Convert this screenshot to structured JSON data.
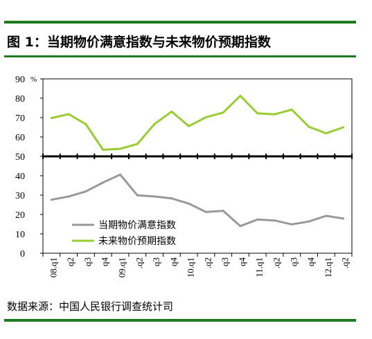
{
  "title": "图 1：当期物价满意指数与未来物价预期指数",
  "source": "数据来源：中国人民银行调查统计司",
  "colors": {
    "rule": "#1f7a1f",
    "current": "#999999",
    "future": "#99cc33",
    "axis": "#000000"
  },
  "chart_data": {
    "type": "line",
    "unit_label": "%",
    "ylim": [
      0,
      90
    ],
    "yticks": [
      0,
      10,
      20,
      30,
      40,
      50,
      60,
      70,
      80,
      90
    ],
    "reference_line": 50,
    "x": [
      "08.q1",
      "q2",
      "q3",
      "q4",
      "09.q1",
      ".q2",
      "q3",
      "q4",
      "10.q1",
      ".q2",
      "q3",
      "q4",
      "11.q1",
      ".q2",
      "q3",
      "q4",
      "12.q1",
      ".q2"
    ],
    "series": [
      {
        "name": "当期物价满意指数",
        "color": "#999999",
        "values": [
          27.6,
          29.3,
          31.9,
          36.5,
          40.6,
          29.9,
          29.3,
          28.3,
          25.6,
          21.3,
          21.9,
          14.0,
          17.4,
          16.9,
          14.9,
          16.4,
          19.3,
          17.9
        ]
      },
      {
        "name": "未来物价预期指数",
        "color": "#99cc33",
        "values": [
          69.8,
          71.8,
          66.6,
          53.4,
          53.9,
          56.4,
          66.7,
          73.1,
          65.6,
          70.2,
          72.6,
          81.2,
          72.2,
          71.7,
          74.1,
          65.2,
          61.9,
          65.0
        ]
      }
    ],
    "legend_position": "lower-left",
    "grid": false
  }
}
